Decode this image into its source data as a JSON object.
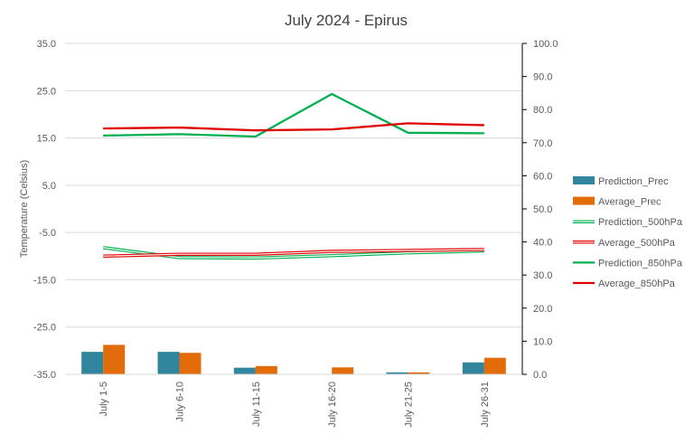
{
  "chart_data": {
    "type": "bar",
    "title": "July 2024 - Epirus",
    "ylabel": "Temperature (Celsius)",
    "y2label": "",
    "xlabel": "",
    "categories": [
      "July 1-5",
      "July 6-10",
      "July 11-15",
      "July 16-20",
      "July 21-25",
      "July 26-31"
    ],
    "ylim": [
      -35,
      35
    ],
    "yticks": [
      "35.0",
      "25.0",
      "15.0",
      "5.0",
      "-5.0",
      "-15.0",
      "-25.0",
      "-35.0"
    ],
    "y2lim": [
      0,
      100
    ],
    "y2ticks": [
      "100.0",
      "90.0",
      "80.0",
      "70.0",
      "60.0",
      "50.0",
      "40.0",
      "30.0",
      "20.0",
      "10.0",
      "0.0"
    ],
    "grid": true,
    "legend_position": "right",
    "bar_series": [
      {
        "name": "Prediction_Prec",
        "axis": "secondary",
        "color": "#31859C",
        "values": [
          6.8,
          6.8,
          2.0,
          0.1,
          0.6,
          3.6
        ]
      },
      {
        "name": "Average_Prec",
        "axis": "secondary",
        "color": "#E36C0A",
        "values": [
          8.9,
          6.5,
          2.5,
          2.1,
          0.6,
          5.0
        ]
      }
    ],
    "line_series": [
      {
        "name": "Prediction_500hPa",
        "axis": "primary",
        "color": "#00B050",
        "style": "double",
        "values": [
          -8.2,
          -10.3,
          -10.4,
          -9.9,
          -9.3,
          -8.9
        ]
      },
      {
        "name": "Average_500hPa",
        "axis": "primary",
        "color": "#E00000",
        "style": "double",
        "values": [
          -10.0,
          -9.6,
          -9.6,
          -9.0,
          -8.8,
          -8.6
        ]
      },
      {
        "name": "Prediction_850hPa",
        "axis": "primary",
        "color": "#00B050",
        "style": "solid",
        "values": [
          15.5,
          15.8,
          15.3,
          24.3,
          16.1,
          16.0
        ]
      },
      {
        "name": "Average_850hPa",
        "axis": "primary",
        "color": "#E00000",
        "style": "solid",
        "values": [
          17.0,
          17.2,
          16.6,
          16.8,
          18.1,
          17.7
        ]
      }
    ]
  }
}
